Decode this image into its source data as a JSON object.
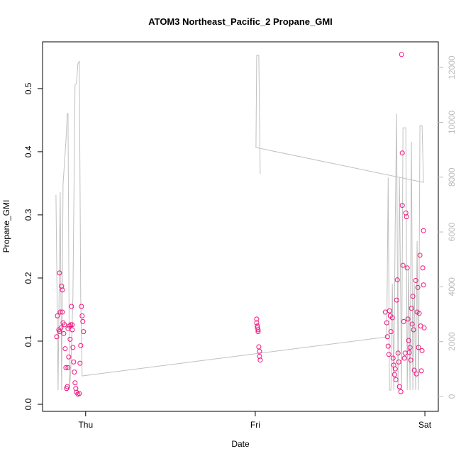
{
  "chart_data": {
    "type": "scatter",
    "title": "ATOM3 Northeast_Pacific_2 Propane_GMI",
    "xlabel": "Date",
    "ylabel": "Propane_GMI",
    "xlim": [
      -6.1,
      49.9
    ],
    "xticks": [
      {
        "value": 0,
        "label": "Thu"
      },
      {
        "value": 24,
        "label": "Fri"
      },
      {
        "value": 48,
        "label": "Sat"
      }
    ],
    "ylim": [
      -0.0112,
      0.574
    ],
    "yticks": [
      {
        "value": 0,
        "label": "0.0"
      },
      0.1,
      0.2,
      0.3,
      0.4,
      0.5
    ],
    "y2lim": [
      -543,
      12935
    ],
    "y2ticks": [
      0,
      2000,
      4000,
      6000,
      8000,
      10000,
      12000
    ],
    "series": [
      {
        "color": "#f0147f",
        "x": [
          -4.1,
          -4.0,
          -3.8,
          -3.7,
          -3.6,
          -3.5,
          -3.4,
          -3.3,
          -3.2,
          -3.1,
          -3.0,
          -2.9,
          -2.8,
          -2.7,
          -2.6,
          -2.5,
          -2.4,
          -2.3,
          -2.2,
          -2.1,
          -2.0,
          -1.9,
          -1.8,
          -1.7,
          -1.6,
          -1.5,
          -1.4,
          -1.3,
          -1.1,
          -0.9,
          -0.8,
          -0.7,
          -0.6,
          -0.5,
          -0.4,
          -0.3,
          -3.7,
          -3.3,
          -2.5,
          -1.9,
          24.2,
          24.2,
          24.3,
          24.3,
          24.4,
          24.4,
          24.5,
          24.6,
          24.6,
          24.7,
          42.4,
          42.6,
          42.7,
          42.8,
          42.9,
          43.0,
          43.1,
          43.2,
          43.4,
          43.5,
          43.6,
          43.7,
          43.8,
          43.9,
          44.0,
          44.1,
          44.2,
          44.3,
          44.4,
          44.6,
          44.7,
          44.8,
          44.8,
          44.9,
          45.0,
          45.1,
          45.2,
          45.3,
          45.4,
          45.5,
          45.6,
          45.7,
          45.8,
          45.9,
          46.0,
          46.1,
          46.2,
          46.3,
          46.4,
          46.5,
          46.7,
          46.8,
          46.9,
          47.0,
          47.1,
          47.2,
          47.3,
          47.4,
          47.5,
          47.6,
          47.7,
          47.8,
          47.8,
          47.9
        ],
        "values": [
          0.107,
          0.14,
          0.118,
          0.208,
          0.146,
          0.121,
          0.187,
          0.181,
          0.129,
          0.112,
          0.126,
          0.088,
          0.058,
          0.025,
          0.028,
          0.058,
          0.075,
          0.124,
          0.103,
          0.126,
          0.155,
          0.118,
          0.09,
          0.067,
          0.051,
          0.034,
          0.025,
          0.019,
          0.016,
          0.017,
          0.065,
          0.093,
          0.155,
          0.14,
          0.131,
          0.115,
          0.115,
          0.146,
          0.12,
          0.126,
          0.135,
          0.129,
          0.124,
          0.121,
          0.118,
          0.115,
          0.091,
          0.084,
          0.076,
          0.07,
          0.146,
          0.129,
          0.107,
          0.092,
          0.079,
          0.148,
          0.14,
          0.115,
          0.137,
          0.073,
          0.062,
          0.047,
          0.056,
          0.039,
          0.165,
          0.197,
          0.081,
          0.067,
          0.028,
          0.02,
          0.554,
          0.398,
          0.315,
          0.22,
          0.131,
          0.073,
          0.081,
          0.303,
          0.297,
          0.216,
          0.135,
          0.101,
          0.082,
          0.09,
          0.07,
          0.152,
          0.127,
          0.171,
          0.118,
          0.054,
          0.196,
          0.048,
          0.146,
          0.185,
          0.09,
          0.144,
          0.236,
          0.124,
          0.053,
          0.085,
          0.216,
          0.189,
          0.275,
          0.121
        ]
      },
      {
        "color": "#c0c0c0",
        "axis": "y2",
        "type": "line",
        "x": [
          -4.2,
          -3.9,
          -3.6,
          -3.4,
          -3.2,
          -2.8,
          -2.6,
          -2.5,
          -2.3,
          -2.1,
          -1.8,
          -1.5,
          -1.3,
          -1.1,
          -0.9,
          -0.7,
          -0.5,
          42.6,
          42.8,
          43.0,
          43.2,
          43.4,
          43.6,
          43.8,
          44.0,
          44.2,
          44.4,
          44.7,
          44.9,
          45.3,
          45.5,
          45.7,
          45.9,
          46.1,
          46.3,
          46.5,
          46.7,
          46.9,
          47.1,
          47.3,
          47.6,
          47.8,
          24.1,
          24.2,
          24.5,
          24.7
        ],
        "values": [
          7350,
          230,
          7450,
          230,
          7740,
          9290,
          10320,
          10320,
          230,
          1010,
          3600,
          11360,
          11410,
          12130,
          12240,
          3600,
          750,
          2170,
          7990,
          230,
          230,
          4110,
          230,
          6180,
          10320,
          230,
          7990,
          230,
          9800,
          9800,
          230,
          4630,
          230,
          9290,
          230,
          4110,
          230,
          5670,
          230,
          9880,
          9880,
          7810,
          9080,
          12440,
          12440,
          8120
        ]
      }
    ]
  }
}
